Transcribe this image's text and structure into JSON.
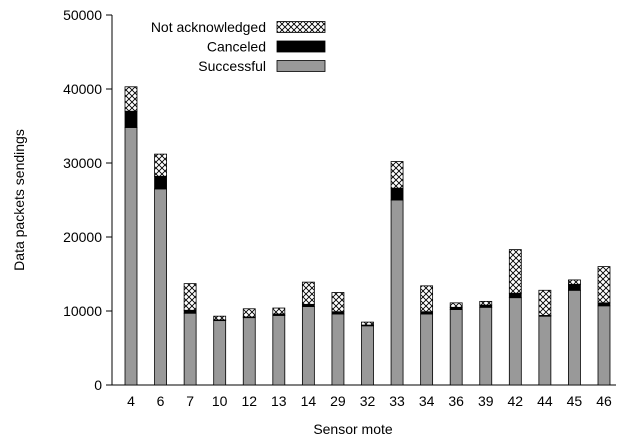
{
  "chart_data": {
    "type": "bar",
    "stacked": true,
    "xlabel": "Sensor mote",
    "ylabel": "Data packets sendings",
    "ylim": [
      0,
      50000
    ],
    "yticks": [
      0,
      10000,
      20000,
      30000,
      40000,
      50000
    ],
    "categories": [
      "4",
      "6",
      "7",
      "10",
      "12",
      "13",
      "14",
      "29",
      "32",
      "33",
      "34",
      "36",
      "39",
      "42",
      "44",
      "45",
      "46"
    ],
    "series": [
      {
        "name": "Successful",
        "color": "#999999",
        "pattern": "solid",
        "values": [
          34800,
          26500,
          9700,
          8700,
          9100,
          9400,
          10600,
          9600,
          8000,
          25000,
          9600,
          10200,
          10500,
          11800,
          9300,
          12800,
          10700
        ]
      },
      {
        "name": "Canceled",
        "color": "#000000",
        "pattern": "solid",
        "values": [
          2200,
          1700,
          400,
          100,
          100,
          200,
          300,
          300,
          100,
          1600,
          300,
          300,
          300,
          600,
          100,
          800,
          400
        ]
      },
      {
        "name": "Not acknowledged",
        "color": "#ffffff",
        "pattern": "crosshatch",
        "values": [
          3300,
          3000,
          3600,
          500,
          1100,
          800,
          3000,
          2600,
          400,
          3600,
          3500,
          600,
          500,
          5900,
          3400,
          600,
          4900
        ]
      }
    ],
    "legend": {
      "position": "top-left",
      "order": [
        "Not acknowledged",
        "Canceled",
        "Successful"
      ]
    },
    "grid": false
  }
}
